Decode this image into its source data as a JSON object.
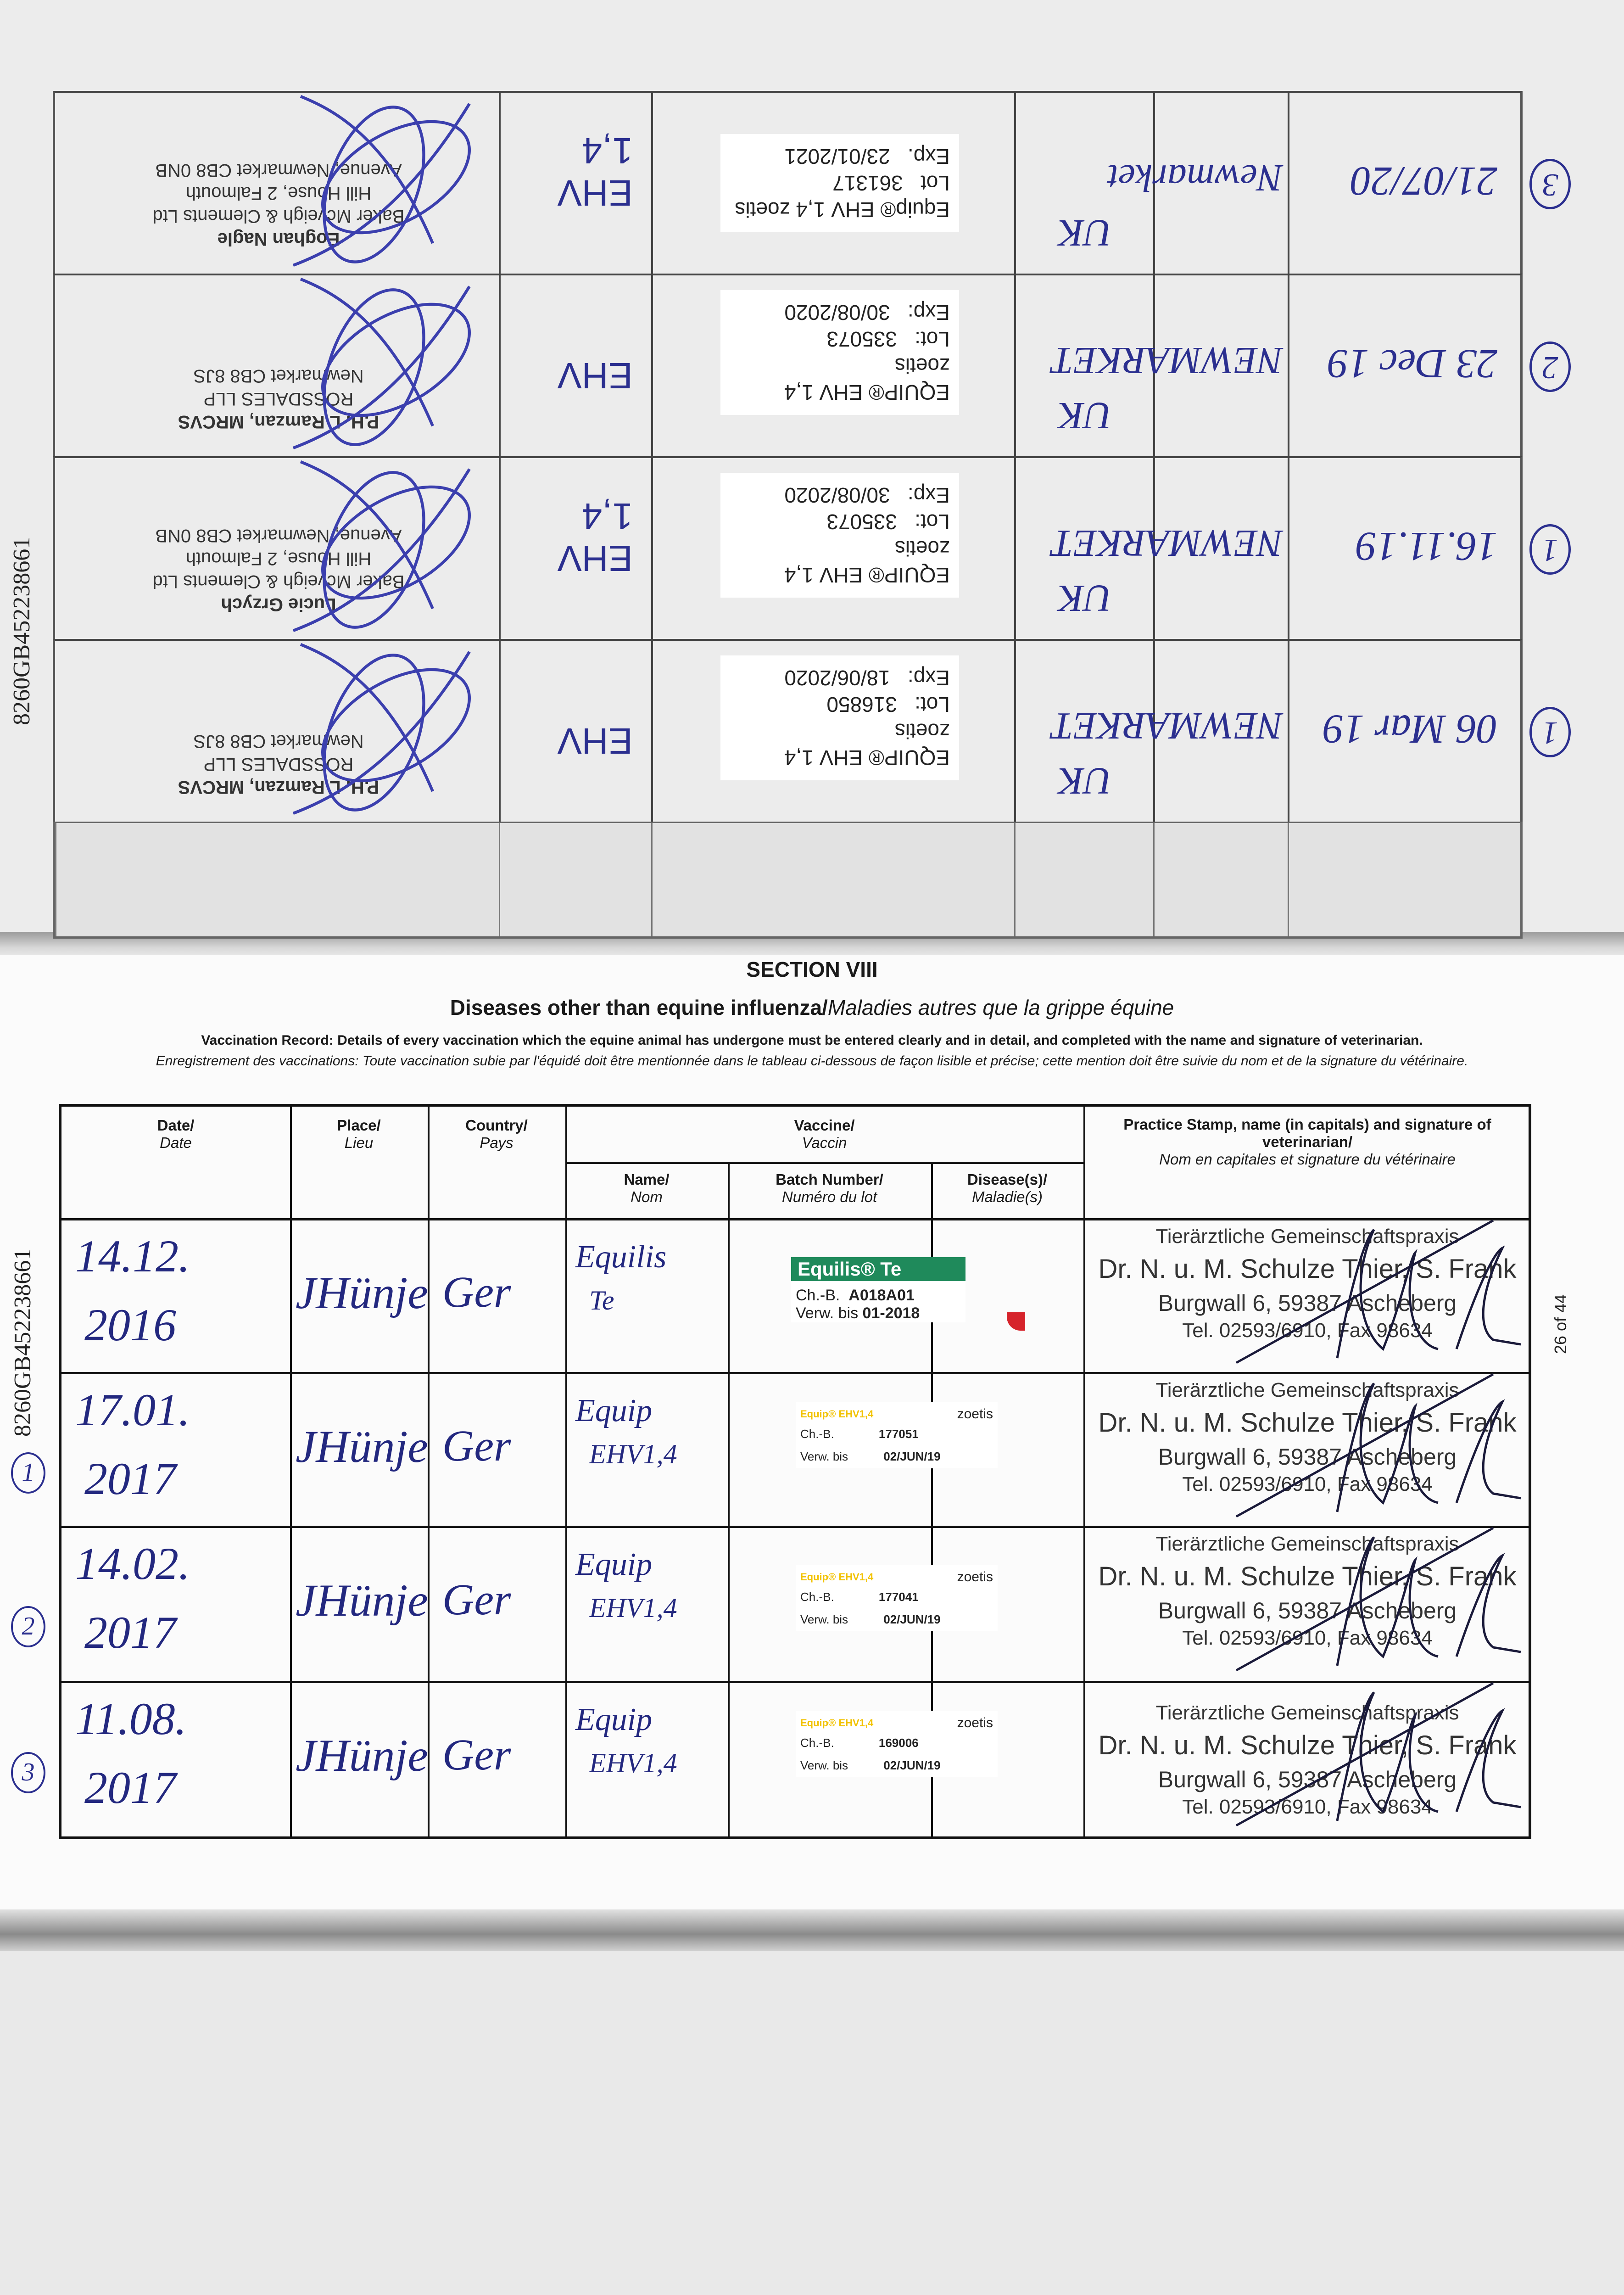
{
  "upper_page": {
    "margin_code": "8260GB452238661",
    "rows": [
      {
        "circle": "1",
        "date": "06 Mar 19",
        "place": "NEWMARKET",
        "country": "UK",
        "vaccine_name": "EHV",
        "sticker": {
          "product": "EQUIP® EHV 1,4 zoetis",
          "lot_label": "Lot:",
          "lot": "316850",
          "exp_label": "Exp:",
          "exp": "18/06/2020"
        },
        "stamp": {
          "name": "P.H. L Ramzan, MRCVS",
          "lines": [
            "ROSSDALES LLP",
            "Newmarket CB8 8JS"
          ]
        }
      },
      {
        "circle": "1",
        "date": "16.11.19",
        "place": "NEWMARKET",
        "country": "UK",
        "vaccine_name": "EHV 1,4",
        "sticker": {
          "product": "EQUIP® EHV 1,4 zoetis",
          "lot_label": "Lot:",
          "lot": "335073",
          "exp_label": "Exp:",
          "exp": "30/08/2020"
        },
        "stamp": {
          "name": "Lucie Grzych",
          "lines": [
            "Baker Mcveigh & Clements Ltd",
            "Hill House, 2 Falmouth",
            "Avenue, Newmarket CB8 0NB"
          ]
        }
      },
      {
        "circle": "2",
        "date": "23 Dec 19",
        "place": "NEWMARKET",
        "country": "UK",
        "vaccine_name": "EHV",
        "sticker": {
          "product": "EQUIP® EHV 1,4 zoetis",
          "lot_label": "Lot:",
          "lot": "335073",
          "exp_label": "Exp:",
          "exp": "30/08/2020"
        },
        "stamp": {
          "name": "P.H. L Ramzan, MRCVS",
          "lines": [
            "ROSSDALES LLP",
            "Newmarket CB8 8JS"
          ]
        }
      },
      {
        "circle": "3",
        "date": "21/07/20",
        "place": "Newmarket",
        "country": "UK",
        "vaccine_name": "EHV 1,4",
        "sticker": {
          "product": "Equip® EHV 1,4 zoetis",
          "lot_label": "Lot",
          "lot": "361317",
          "exp_label": "Exp.",
          "exp": "23/01/2021"
        },
        "stamp": {
          "name": "Eoghan Nagle",
          "lines": [
            "Baker Mcveigh & Clements Ltd",
            "Hill House, 2 Falmouth",
            "Avenue, Newmarket CB8 0NB"
          ]
        }
      }
    ]
  },
  "lower_page": {
    "margin_code": "8260GB452238661",
    "section": "SECTION VIII",
    "title_en": "Diseases other than equine influenza/",
    "title_fr": "Maladies autres que la grippe équine",
    "instructions_en": "Vaccination Record: Details of every vaccination which the equine animal has undergone must be entered clearly and in detail, and completed with the name and signature of veterinarian.",
    "instructions_fr": "Enregistrement des vaccinations: Toute vaccination subie par l'équidé doit être mentionnée dans le tableau ci-dessous de façon lisible et précise; cette mention doit être suivie du nom et de la signature du vétérinaire.",
    "headers": {
      "date": {
        "en": "Date/",
        "fr": "Date"
      },
      "place": {
        "en": "Place/",
        "fr": "Lieu"
      },
      "country": {
        "en": "Country/",
        "fr": "Pays"
      },
      "vaccine": {
        "en": "Vaccine/",
        "fr": "Vaccin"
      },
      "name": {
        "en": "Name/",
        "fr": "Nom"
      },
      "batch": {
        "en": "Batch Number/",
        "fr": "Numéro du lot"
      },
      "disease": {
        "en": "Disease(s)/",
        "fr": "Maladie(s)"
      },
      "stamp": {
        "en": "Practice Stamp, name (in capitals) and signature of veterinarian/",
        "fr": "Nom en capitales et signature du vétérinaire"
      }
    },
    "rows": [
      {
        "circle": "",
        "date_1": "14.12.",
        "date_2": "2016",
        "place": "JHünje",
        "country": "Ger",
        "name_1": "Equilis",
        "name_2": "Te",
        "sticker": {
          "brand": "",
          "product": "Equilis® Te",
          "batch_label": "Ch.-B.",
          "batch": "A018A01",
          "expiry_label": "Verw. bis",
          "expiry": "01-2018"
        }
      },
      {
        "circle": "1",
        "date_1": "17.01.",
        "date_2": "2017",
        "place": "JHünje",
        "country": "Ger",
        "name_1": "Equip",
        "name_2": "EHV1,4",
        "sticker": {
          "brand": "zoetis",
          "product": "Equip® EHV1,4",
          "batch_label": "Ch.-B.",
          "batch": "177051",
          "expiry_label": "Verw. bis",
          "expiry": "02/JUN/19"
        }
      },
      {
        "circle": "2",
        "date_1": "14.02.",
        "date_2": "2017",
        "place": "JHünje",
        "country": "Ger",
        "name_1": "Equip",
        "name_2": "EHV1,4",
        "sticker": {
          "brand": "zoetis",
          "product": "Equip® EHV1,4",
          "batch_label": "Ch.-B.",
          "batch": "177041",
          "expiry_label": "Verw. bis",
          "expiry": "02/JUN/19"
        }
      },
      {
        "circle": "3",
        "date_1": "11.08.",
        "date_2": "2017",
        "place": "JHünje",
        "country": "Ger",
        "name_1": "Equip",
        "name_2": "EHV1,4",
        "sticker": {
          "brand": "zoetis",
          "product": "Equip® EHV1,4",
          "batch_label": "Ch.-B.",
          "batch": "169006",
          "expiry_label": "Verw. bis",
          "expiry": "02/JUN/19"
        }
      }
    ],
    "stamp": {
      "line1": "Tierärztliche Gemeinschaftspraxis",
      "line2": "Dr. N. u. M. Schulze Thier, S. Frank",
      "line3": "Burgwall 6, 59387 Ascheberg",
      "line4": "Tel. 02593/6910, Fax 98634"
    },
    "page_number": "26 of 44",
    "colors": {
      "ink_blue": "#23287f",
      "equilis_green": "#1f8a5b",
      "equip_yellow": "#f2c200"
    }
  }
}
